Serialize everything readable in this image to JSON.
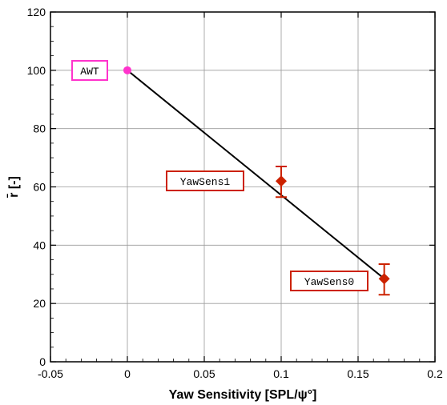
{
  "chart_data": {
    "type": "scatter",
    "xlabel": "Yaw Sensitivity [SPL/ψ°]",
    "ylabel": "r̄ [-]",
    "xlim": [
      -0.05,
      0.2
    ],
    "ylim": [
      0,
      120
    ],
    "xticks": [
      -0.05,
      0,
      0.05,
      0.1,
      0.15,
      0.2
    ],
    "xtick_labels": [
      "-0.05",
      "0",
      "0.05",
      "0.1",
      "0.15",
      "0.2"
    ],
    "yticks": [
      0,
      20,
      40,
      60,
      80,
      100,
      120
    ],
    "ytick_labels": [
      "0",
      "20",
      "40",
      "60",
      "80",
      "100",
      "120"
    ],
    "grid": true,
    "trend_line": {
      "from": [
        0,
        100
      ],
      "to": [
        0.167,
        28.5
      ],
      "color": "#000000"
    },
    "points": [
      {
        "label": "AWT",
        "x": 0,
        "y": 100,
        "marker": "circle",
        "color": "#ff33cc"
      },
      {
        "label": "YawSens1",
        "x": 0.1,
        "y": 62,
        "err_low": 56.5,
        "err_high": 67,
        "marker": "diamond",
        "color": "#cc2200"
      },
      {
        "label": "YawSens0",
        "x": 0.167,
        "y": 28.5,
        "err_low": 23,
        "err_high": 33.5,
        "marker": "diamond",
        "color": "#cc2200"
      }
    ]
  }
}
